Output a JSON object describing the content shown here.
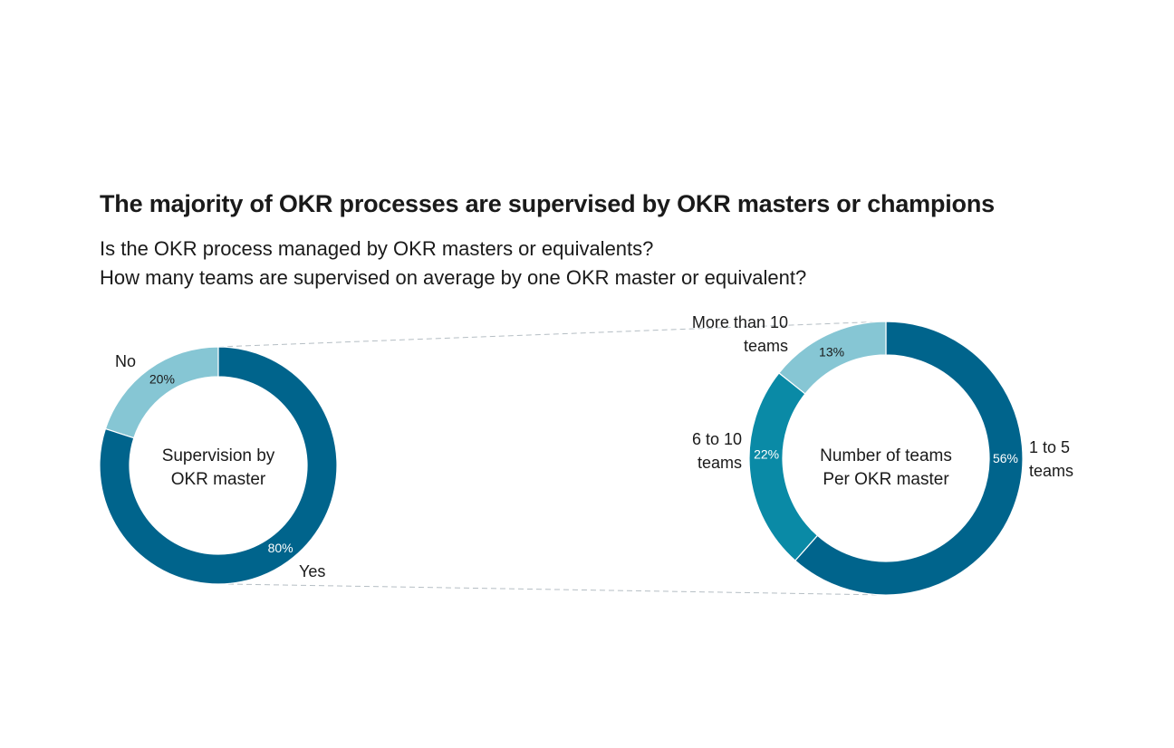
{
  "title": "The majority of OKR processes are supervised by OKR masters or champions",
  "subtitle_lines": [
    "Is the OKR process managed by OKR masters or equivalents?",
    "How many teams are supervised on average by one OKR master or equivalent?"
  ],
  "colors": {
    "dark_blue": "#00648c",
    "mid_teal": "#0a8aa6",
    "light_blue": "#86c6d4",
    "connector": "#b5bec4"
  },
  "chart_data": [
    {
      "type": "pie",
      "donut": true,
      "center_label": [
        "Supervision by",
        "OKR master"
      ],
      "slices": [
        {
          "label": [
            "No"
          ],
          "value": 20,
          "pct_label": "20%",
          "color": "#86c6d4"
        },
        {
          "label": [
            "Yes"
          ],
          "value": 80,
          "pct_label": "80%",
          "color": "#00648c"
        }
      ]
    },
    {
      "type": "pie",
      "donut": true,
      "center_label": [
        "Number of teams",
        "Per OKR master"
      ],
      "slices": [
        {
          "label": [
            "1 to 5",
            "teams"
          ],
          "value": 56,
          "pct_label": "56%",
          "color": "#00648c"
        },
        {
          "label": [
            "6 to 10",
            "teams"
          ],
          "value": 22,
          "pct_label": "22%",
          "color": "#0a8aa6"
        },
        {
          "label": [
            "More than 10",
            "teams"
          ],
          "value": 13,
          "pct_label": "13%",
          "color": "#86c6d4"
        }
      ]
    }
  ]
}
